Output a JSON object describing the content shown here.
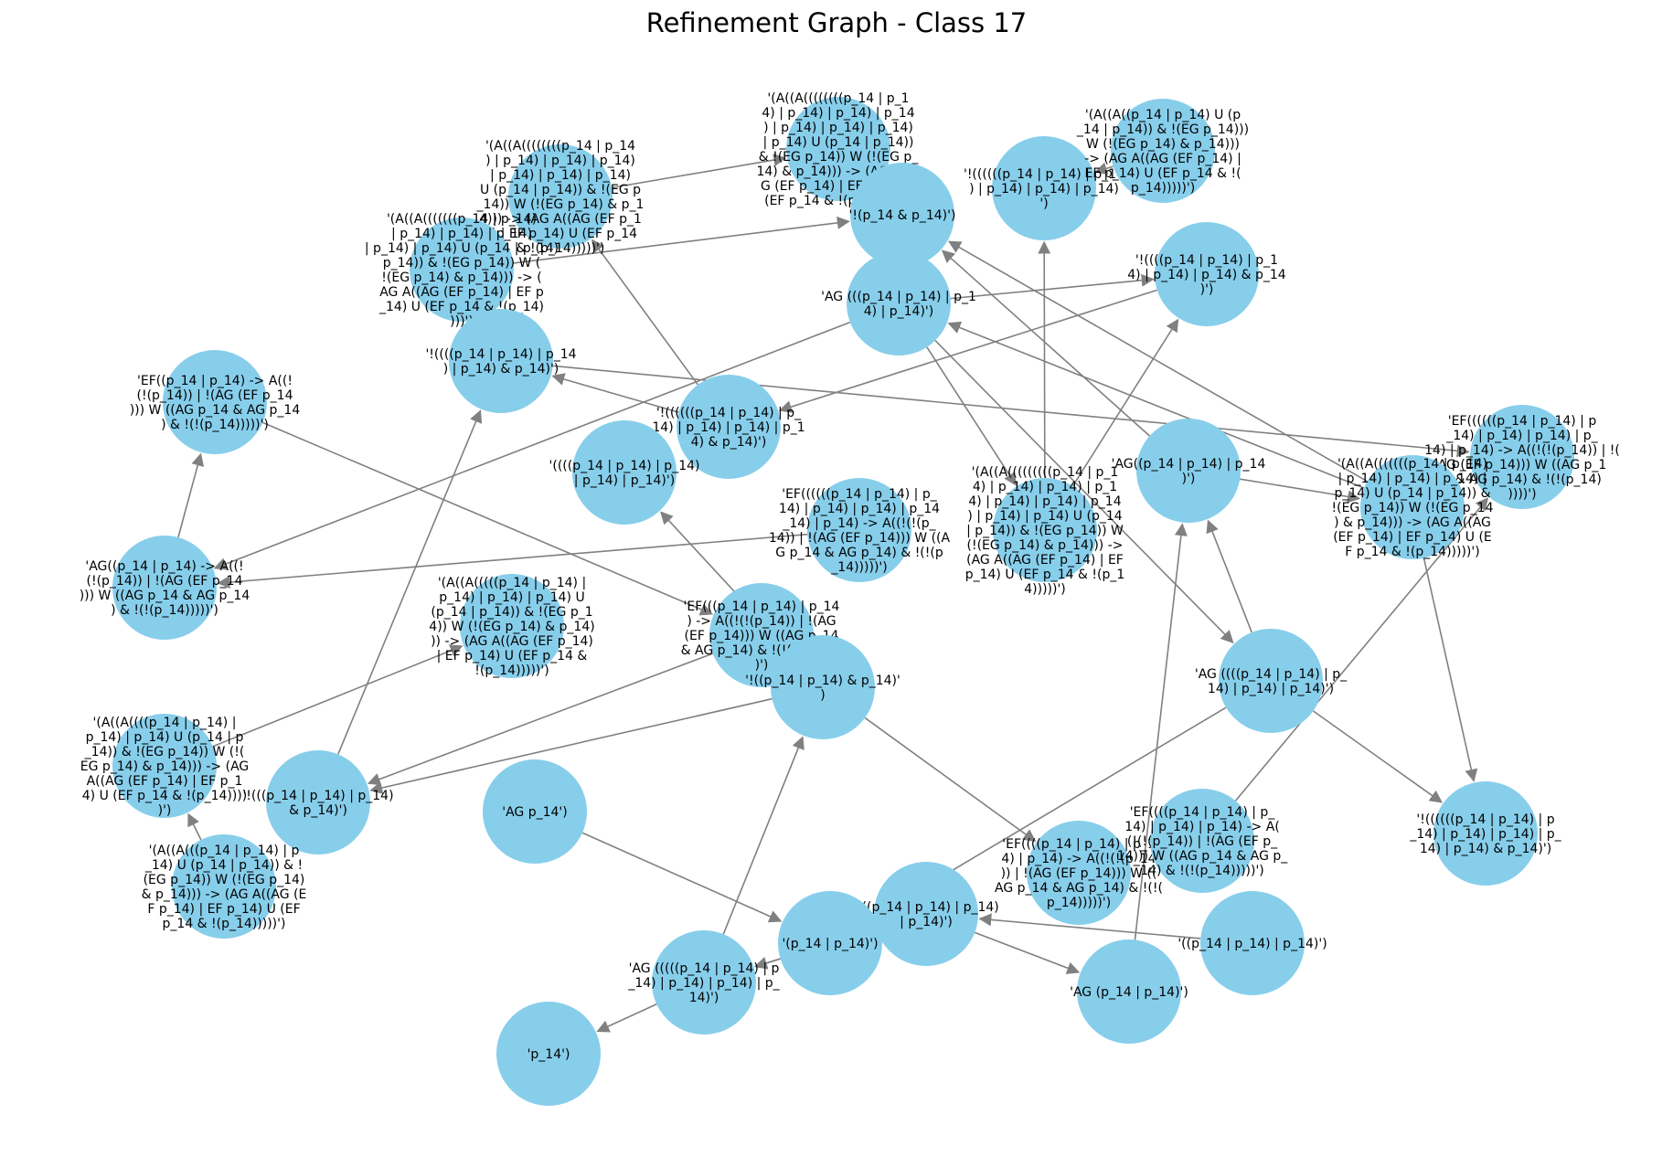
{
  "title": "Refinement Graph - Class 17",
  "style": {
    "node_color": "#87ceeb",
    "edge_color": "#808080",
    "label_color": "#000000"
  },
  "nodes": [
    {
      "id": "n1",
      "lines": [
        "'(A((A((((((((p_14 | p_1",
        "4) | p_14) | p_14) | p_14",
        ") | p_14) | p_14) | p_14)",
        "| p_14) U (p_14 | p_14))",
        "& !(EG p_14)) W (!(EG p_",
        "14) & p_14))) -> (AG A((A",
        "G (EF p_14) | EF p_14) U",
        "(EF p_14 & !(p_14)))))')"
      ]
    },
    {
      "id": "n2",
      "lines": [
        "'!(p_14 & p_14)')"
      ]
    },
    {
      "id": "n3",
      "lines": [
        "'!((((((p_14 | p_14) | p_14",
        ") | p_14) | p_14) | p_14)",
        "')"
      ]
    },
    {
      "id": "n4",
      "lines": [
        "'(A((A((p_14 | p_14) U (p",
        "_14 | p_14)) & !(EG p_14)))",
        "W (!(EG p_14) & p_14)))",
        "-> (AG A((AG (EF p_14) |",
        "EF p_14) U (EF p_14 & !(",
        "p_14)))))')"
      ]
    },
    {
      "id": "n5",
      "lines": [
        "'!((((p_14 | p_14) | p_1",
        "4) | p_14) | p_14) & p_14",
        ")')"
      ]
    },
    {
      "id": "n6",
      "lines": [
        "'(A((A((((((((p_14 | p_14",
        ") | p_14) | p_14) | p_14)",
        "| p_14) | p_14) | p_14)",
        "U (p_14 | p_14)) & !(EG p",
        "_14)) W (!(EG p_14) & p_1",
        "4))) -> (AG A((AG (EF p_1",
        "4) | EF p_14) U (EF p_14",
        "& !(p_14)))))')"
      ]
    },
    {
      "id": "n7",
      "lines": [
        "'(A((A(((((((p_14 | p_14)",
        "| p_14) | p_14) | p_14)",
        "| p_14) | p_14) U (p_14 | p_14)",
        "p_14)) & !(EG p_14)) W (",
        "!(EG p_14) & p_14))) -> (",
        "AG A((AG (EF p_14) | EF p",
        "_14) U (EF p_14 & !(p_14)",
        ")))')"
      ]
    },
    {
      "id": "n8",
      "lines": [
        "'!((((p_14 | p_14) | p_14",
        ") | p_14) & p_14)')"
      ]
    },
    {
      "id": "n9",
      "lines": [
        "'AG (((p_14 | p_14) | p_1",
        "4) | p_14)')"
      ]
    },
    {
      "id": "n10",
      "lines": [
        "'EF((p_14 | p_14) -> A((!",
        "(!(p_14)) | !(AG (EF p_14",
        "))) W ((AG p_14 & AG p_14",
        ") & !(!(p_14)))))')"
      ]
    },
    {
      "id": "n11",
      "lines": [
        "'!((((((p_14 | p_14) | p_",
        "14) | p_14) | p_14) | p_1",
        "4) & p_14)')"
      ]
    },
    {
      "id": "n12",
      "lines": [
        "'((((p_14 | p_14) | p_14)",
        "| p_14) | p_14)')"
      ]
    },
    {
      "id": "n13",
      "lines": [
        "'AG((p_14 | p_14) | p_14",
        ")')"
      ]
    },
    {
      "id": "n14",
      "lines": [
        "'EF((((((p_14 | p_14) | p_",
        "14) | p_14) | p_14) | p_14",
        "_14) | p_14) -> A((!(!(p_",
        "14)) | !(AG (EF p_14))) W ((A",
        "G p_14 & AG p_14) & !(!(p",
        "_14)))))')"
      ]
    },
    {
      "id": "n15",
      "lines": [
        "'(A((A(((((((((p_14 | p_1",
        "4) | p_14) | p_14) | p_1",
        "4) | p_14) | p_14) | p_14",
        ") | p_14) | p_14) U (p_14",
        "| p_14)) & !(EG p_14)) W",
        "(!(EG p_14) & p_14))) ->",
        "(AG A((AG (EF p_14) | EF",
        "p_14) U (EF p_14 & !(p_1",
        "4)))))')"
      ]
    },
    {
      "id": "n16",
      "lines": [
        "'EF((((((p_14 | p_14) | p",
        "_14) | p_14) | p_14) | p_",
        "14) | p_14) -> A((!(!(p_14)) | !(",
        "AG (EF p_14))) W ((AG p_1",
        "4 & AG p_14) & !(!(p_14)",
        "))))')"
      ]
    },
    {
      "id": "n17",
      "lines": [
        "'(A((A(((((((p_14 | p_14)",
        "| p_14) | p_14) | p_14) |",
        "p_14) U (p_14 | p_14)) &",
        "!(EG p_14)) W (!(EG p_14",
        ") & p_14))) -> (AG A((AG",
        "(EF p_14) | EF p_14) U (E",
        "F p_14 & !(p_14)))))')"
      ]
    },
    {
      "id": "n18",
      "lines": [
        "'AG((p_14 | p_14) -> A((!",
        "(!(p_14)) | !(AG (EF p_14",
        "))) W ((AG p_14 & AG p_14",
        ") & !(!(p_14)))))')"
      ]
    },
    {
      "id": "n19",
      "lines": [
        "'(A((A(((((p_14 | p_14) |",
        "p_14) | p_14) | p_14) U",
        "(p_14 | p_14)) & !(EG p_1",
        "4)) W (!(EG p_14) & p_14)",
        ")) -> (AG A((AG (EF p_14)",
        "| EF p_14) U (EF p_14 &",
        "!(p_14)))))')"
      ]
    },
    {
      "id": "n20",
      "lines": [
        "'EF(((p_14 | p_14) | p_14",
        ") -> A((!(!(p_14)) | !(AG",
        "(EF p_14))) W ((AG p_14",
        "& AG p_14) & !(!(p_14))))",
        ")')"
      ]
    },
    {
      "id": "n21",
      "lines": [
        "'!((p_14 | p_14) & p_14)'",
        ")"
      ]
    },
    {
      "id": "n22",
      "lines": [
        "'AG ((((p_14 | p_14) | p_",
        "14) | p_14) | p_14)')"
      ]
    },
    {
      "id": "n23",
      "lines": [
        "'(A((A((((p_14 | p_14) |",
        "p_14) | p_14) U (p_14 | p",
        "_14)) & !(EG p_14)) W (!(",
        "EG p_14) & p_14))) -> (AG",
        "A((AG (EF p_14) | EF p_1",
        "4) U (EF p_14 & !(p_14))))",
        ")')"
      ]
    },
    {
      "id": "n24",
      "lines": [
        "'!(((p_14 | p_14) | p_14)",
        "& p_14)')"
      ]
    },
    {
      "id": "n25",
      "lines": [
        "'(A((A(((p_14 | p_14) | p",
        "_14) U (p_14 | p_14)) & !",
        "(EG p_14)) W (!(EG p_14)",
        "& p_14))) -> (AG A((AG (E",
        "F p_14) | EF p_14) U (EF",
        "p_14 & !(p_14)))))')"
      ]
    },
    {
      "id": "n26",
      "lines": [
        "'AG p_14')"
      ]
    },
    {
      "id": "n27",
      "lines": [
        "'EF((((p_14 | p_14) | p_1",
        "4) | p_14) -> A((!(!(p_14",
        ")) | !(AG (EF p_14))) W ((",
        "AG p_14 & AG p_14) & !(!(",
        "p_14)))))')"
      ]
    },
    {
      "id": "n28",
      "lines": [
        "'EF((((p_14 | p_14) | p_",
        "14) | p_14) | p_14) -> A(",
        "(!(!(p_14)) | !(AG (EF p_",
        "14))) W ((AG p_14 & AG p_",
        "14) & !(!(p_14)))))')"
      ]
    },
    {
      "id": "n29",
      "lines": [
        "'!((((((p_14 | p_14) | p",
        "_14) | p_14) | p_14) | p_",
        "14) | p_14) & p_14)')"
      ]
    },
    {
      "id": "n30",
      "lines": [
        "'(((p_14 | p_14) | p_14)",
        "| p_14)')"
      ]
    },
    {
      "id": "n31",
      "lines": [
        "'(p_14 | p_14)')"
      ]
    },
    {
      "id": "n32",
      "lines": [
        "'((p_14 | p_14) | p_14)')"
      ]
    },
    {
      "id": "n33",
      "lines": [
        "'AG (((((p_14 | p_14) | p",
        "_14) | p_14) | p_14) | p_",
        "14)')"
      ]
    },
    {
      "id": "n34",
      "lines": [
        "'AG (p_14 | p_14)')"
      ]
    },
    {
      "id": "n35",
      "lines": [
        "'p_14')"
      ]
    }
  ],
  "edges": [
    [
      "n6",
      "n1"
    ],
    [
      "n7",
      "n2"
    ],
    [
      "n9",
      "n5"
    ],
    [
      "n11",
      "n6"
    ],
    [
      "n11",
      "n8"
    ],
    [
      "n14",
      "n18"
    ],
    [
      "n18",
      "n10"
    ],
    [
      "n10",
      "n20"
    ],
    [
      "n5",
      "n11"
    ],
    [
      "n4",
      "n3"
    ],
    [
      "n13",
      "n2"
    ],
    [
      "n13",
      "n17"
    ],
    [
      "n15",
      "n3"
    ],
    [
      "n15",
      "n5"
    ],
    [
      "n9",
      "n15"
    ],
    [
      "n9",
      "n22"
    ],
    [
      "n22",
      "n13"
    ],
    [
      "n22",
      "n29"
    ],
    [
      "n17",
      "n29"
    ],
    [
      "n17",
      "n9"
    ],
    [
      "n17",
      "n2"
    ],
    [
      "n22",
      "n31"
    ],
    [
      "n21",
      "n12"
    ],
    [
      "n21",
      "n24"
    ],
    [
      "n21",
      "n27"
    ],
    [
      "n24",
      "n8"
    ],
    [
      "n23",
      "n19"
    ],
    [
      "n25",
      "n23"
    ],
    [
      "n26",
      "n31"
    ],
    [
      "n30",
      "n33"
    ],
    [
      "n30",
      "n34"
    ],
    [
      "n32",
      "n30"
    ],
    [
      "n34",
      "n13"
    ],
    [
      "n33",
      "n35"
    ],
    [
      "n33",
      "n21"
    ],
    [
      "n31",
      "n33"
    ],
    [
      "n8",
      "n16"
    ],
    [
      "n20",
      "n24"
    ],
    [
      "n9",
      "n18"
    ],
    [
      "n28",
      "n16"
    ]
  ]
}
